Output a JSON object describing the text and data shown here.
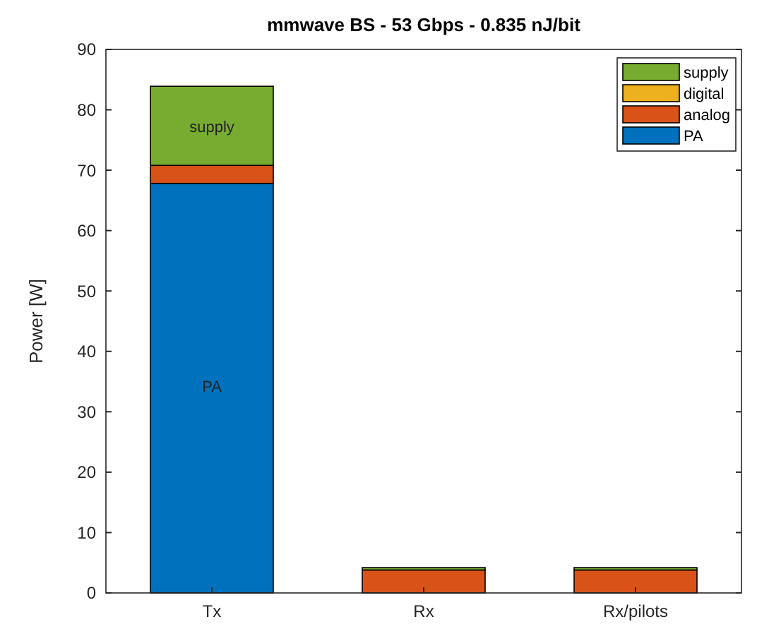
{
  "chart_data": {
    "type": "bar",
    "title": "mmwave BS - 53 Gbps - 0.835 nJ/bit",
    "ylabel": "Power [W]",
    "categories": [
      "Tx",
      "Rx",
      "Rx/pilots"
    ],
    "stacked": true,
    "series": [
      {
        "name": "PA",
        "color": "#0072bd",
        "values": [
          67.8,
          0,
          0
        ]
      },
      {
        "name": "analog",
        "color": "#d95319",
        "values": [
          3,
          3.8,
          3.8
        ]
      },
      {
        "name": "digital",
        "color": "#edb120",
        "values": [
          0,
          0,
          0
        ]
      },
      {
        "name": "supply",
        "color": "#77ac30",
        "values": [
          13.1,
          0.4,
          0.4
        ]
      }
    ],
    "ylim": [
      0,
      90
    ],
    "yticks": [
      0,
      10,
      20,
      30,
      40,
      50,
      60,
      70,
      80,
      90
    ],
    "legend": "top right",
    "grid": false,
    "annotations": [
      "supply",
      "PA"
    ]
  }
}
